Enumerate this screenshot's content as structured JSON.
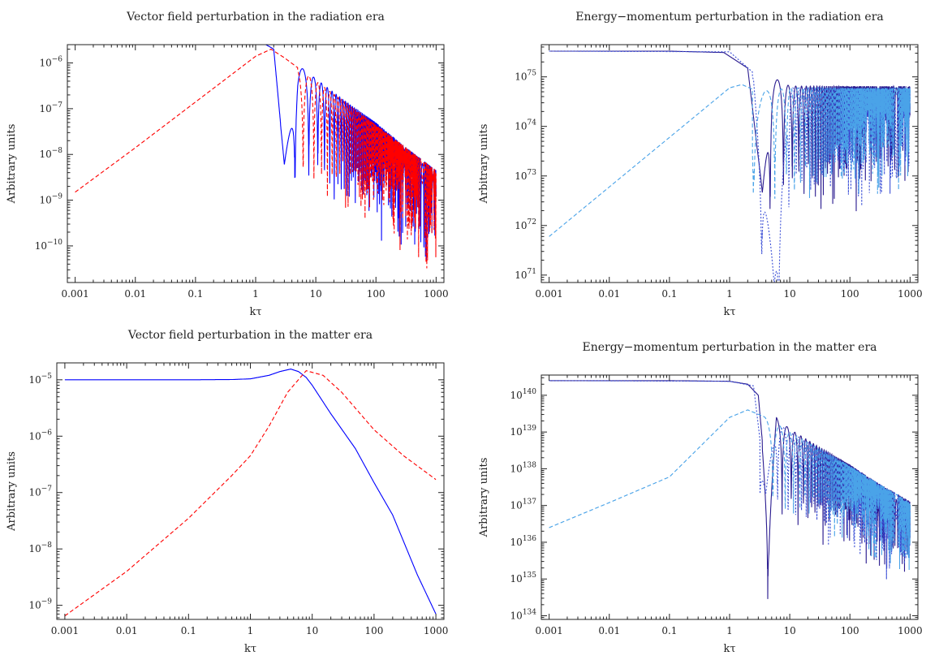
{
  "chart_data": [
    {
      "type": "line",
      "title": "Vector field perturbation in the radiation era",
      "xlabel": "kτ",
      "ylabel": "Arbitrary units",
      "xscale": "log",
      "yscale": "log",
      "xlim": [
        0.001,
        1000
      ],
      "ylim_exp": [
        -10.8,
        -5.6
      ],
      "x_ticks": [
        "0.001",
        "0.01",
        "0.1",
        "1",
        "10",
        "100",
        "1000"
      ],
      "y_ticks": [
        {
          "base": "10",
          "exp": "−6"
        },
        {
          "base": "10",
          "exp": "−7"
        },
        {
          "base": "10",
          "exp": "−8"
        },
        {
          "base": "10",
          "exp": "−9"
        },
        {
          "base": "10",
          "exp": "−10"
        }
      ],
      "series": [
        {
          "style": "solid",
          "color": "#0000ff",
          "kind": "vec-rad-solid",
          "x": [
            0.001,
            0.01,
            0.1,
            0.5,
            1,
            2,
            3,
            5,
            10,
            30,
            100,
            300,
            1000
          ],
          "y": [
            4e-06,
            4e-06,
            4e-06,
            3.9e-06,
            3.4e-06,
            2e-06,
            6e-09,
            9e-07,
            4.5e-07,
            1.5e-07,
            5e-08,
            1.5e-08,
            4.5e-09
          ]
        },
        {
          "style": "dashed",
          "color": "#ff0000",
          "kind": "vec-rad-dashed",
          "x": [
            0.001,
            0.01,
            0.1,
            1,
            1.8,
            3,
            10,
            100,
            1000
          ],
          "y": [
            1.5e-09,
            1.4e-08,
            1.4e-07,
            1.4e-06,
            2e-06,
            1.3e-06,
            4e-07,
            4.5e-08,
            4.5e-09
          ]
        }
      ]
    },
    {
      "type": "line",
      "title": "Energy−momentum perturbation in the radiation era",
      "xlabel": "kτ",
      "ylabel": "Arbitrary units",
      "xscale": "log",
      "yscale": "log",
      "xlim": [
        0.001,
        1000
      ],
      "ylim_exp": [
        70.85,
        75.65
      ],
      "x_ticks": [
        "0.001",
        "0.01",
        "0.1",
        "1",
        "10",
        "100",
        "1000"
      ],
      "y_ticks": [
        {
          "base": "10",
          "exp": "75"
        },
        {
          "base": "10",
          "exp": "74"
        },
        {
          "base": "10",
          "exp": "73"
        },
        {
          "base": "10",
          "exp": "72"
        },
        {
          "base": "10",
          "exp": "71"
        }
      ],
      "series": [
        {
          "style": "solid",
          "color": "#2a1b8f",
          "kind": "em-rad-solid",
          "x": [
            0.001,
            0.1,
            0.8,
            2,
            3.5,
            5,
            10,
            100,
            1000
          ],
          "y": [
            3.3e+75,
            3.3e+75,
            3.1e+75,
            1.5e+75,
            5e+72,
            1e+75,
            6.5e+74,
            6.5e+74,
            6.5e+74
          ]
        },
        {
          "style": "dotted",
          "color": "#3b4fd6",
          "kind": "em-rad-dotted",
          "x": [
            0.001,
            1,
            2.5,
            5.5,
            10,
            1000
          ],
          "y": [
            3.3e+75,
            3.2e+75,
            1.2e+75,
            8e+70,
            6e+74,
            6e+74
          ]
        },
        {
          "style": "dashed",
          "color": "#4aa3e8",
          "kind": "em-rad-dashed",
          "x": [
            0.001,
            0.01,
            0.1,
            1,
            1.6,
            3,
            10,
            1000
          ],
          "y": [
            6e+71,
            6e+72,
            6e+73,
            6e+74,
            7e+74,
            5e+74,
            6e+74,
            6e+74
          ]
        }
      ]
    },
    {
      "type": "line",
      "title": "Vector field perturbation in the matter era",
      "xlabel": "kτ",
      "ylabel": "Arbitrary units",
      "xscale": "log",
      "yscale": "log",
      "xlim": [
        0.001,
        1000
      ],
      "ylim_exp": [
        -9.25,
        -4.7
      ],
      "x_ticks": [
        "0.001",
        "0.01",
        "0.1",
        "1",
        "10",
        "100",
        "1000"
      ],
      "y_ticks": [
        {
          "base": "10",
          "exp": "−5"
        },
        {
          "base": "10",
          "exp": "−6"
        },
        {
          "base": "10",
          "exp": "−7"
        },
        {
          "base": "10",
          "exp": "−8"
        },
        {
          "base": "10",
          "exp": "−9"
        }
      ],
      "series": [
        {
          "style": "solid",
          "color": "#0000ff",
          "kind": "vec-mat-solid",
          "x": [
            0.001,
            0.01,
            0.1,
            0.5,
            1,
            2,
            3,
            4.5,
            6,
            8,
            10,
            20,
            50,
            100,
            200,
            500,
            1000
          ],
          "y": [
            1e-05,
            1e-05,
            1e-05,
            1.01e-05,
            1.04e-05,
            1.2e-05,
            1.4e-05,
            1.55e-05,
            1.4e-05,
            1.1e-05,
            8e-06,
            2.5e-06,
            6e-07,
            1.5e-07,
            4e-08,
            3.5e-09,
            7e-10
          ]
        },
        {
          "style": "dashed",
          "color": "#ff0000",
          "kind": "vec-mat-dashed",
          "x": [
            0.001,
            0.01,
            0.1,
            0.5,
            1,
            2,
            4,
            8,
            15,
            30,
            100,
            300,
            1000
          ],
          "y": [
            6.5e-10,
            4e-09,
            3.5e-08,
            2e-07,
            4.5e-07,
            1.5e-06,
            6e-06,
            1.45e-05,
            1.2e-05,
            6e-06,
            1.3e-06,
            4.5e-07,
            1.7e-07
          ]
        }
      ]
    },
    {
      "type": "line",
      "title": "Energy−momentum perturbation in the matter era",
      "xlabel": "kτ",
      "ylabel": "Arbitrary units",
      "xscale": "log",
      "yscale": "log",
      "xlim": [
        0.001,
        1000
      ],
      "ylim_exp": [
        133.9,
        140.55
      ],
      "x_ticks": [
        "0.001",
        "0.01",
        "0.1",
        "1",
        "10",
        "100",
        "1000"
      ],
      "y_ticks": [
        {
          "base": "10",
          "exp": "140"
        },
        {
          "base": "10",
          "exp": "139"
        },
        {
          "base": "10",
          "exp": "138"
        },
        {
          "base": "10",
          "exp": "137"
        },
        {
          "base": "10",
          "exp": "136"
        },
        {
          "base": "10",
          "exp": "135"
        },
        {
          "base": "10",
          "exp": "134"
        }
      ],
      "series": [
        {
          "style": "solid",
          "color": "#2a1b8f",
          "kind": "em-mat-solid",
          "x": [
            0.001,
            0.1,
            1,
            2,
            3,
            4.5,
            6,
            10,
            30,
            100,
            300,
            1000
          ],
          "y": [
            2.5e+140,
            2.5e+140,
            2.4e+140,
            2e+140,
            1e+140,
            5e+136,
            2.5e+139,
            1.2e+139,
            4e+138,
            1.3e+138,
            4e+137,
            1.3e+137
          ]
        },
        {
          "style": "dotted",
          "color": "#3b4fd6",
          "kind": "em-mat-dotted",
          "x": [
            0.001,
            1,
            2.5,
            4,
            6,
            10,
            100,
            1000
          ],
          "y": [
            2.5e+140,
            2.4e+140,
            1.8e+140,
            3e+137,
            1.8e+139,
            1e+139,
            1.2e+138,
            1.2e+137
          ]
        },
        {
          "style": "dashed",
          "color": "#4aa3e8",
          "kind": "em-mat-dashed",
          "x": [
            0.001,
            0.01,
            0.1,
            1,
            2,
            4,
            10,
            100,
            1000
          ],
          "y": [
            2.5e+136,
            1.2e+137,
            6e+137,
            2.5e+139,
            4e+139,
            2.5e+139,
            1e+139,
            1.2e+138,
            1.2e+137
          ]
        }
      ]
    }
  ]
}
